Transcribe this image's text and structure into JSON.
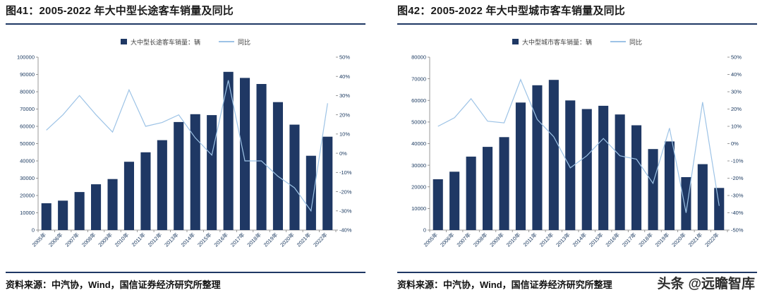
{
  "page_background": "#ffffff",
  "watermark": {
    "logo": "头条",
    "handle": "@远瞻智库"
  },
  "panels": [
    {
      "title": "图41：2005-2022 年大中型长途客车销量及同比",
      "source": "资料来源：中汽协，Wind，国信证券经济研究所整理"
    },
    {
      "title": "图42：2005-2022 年大中型城市客车销量及同比",
      "source": "资料来源：中汽协，Wind，国信证券经济研究所整理"
    }
  ],
  "chart_data": [
    {
      "type": "bar+line",
      "title": "2005-2022 年大中型长途客车销量及同比",
      "categories": [
        "2005年",
        "2006年",
        "2007年",
        "2008年",
        "2009年",
        "2010年",
        "2011年",
        "2012年",
        "2013年",
        "2014年",
        "2015年",
        "2016年",
        "2017年",
        "2018年",
        "2019年",
        "2020年",
        "2021年",
        "2022年"
      ],
      "series": [
        {
          "name": "大中型长途客车销量：辆",
          "kind": "bar",
          "axis": "left",
          "values": [
            15500,
            17000,
            22000,
            26500,
            29500,
            39500,
            45000,
            52000,
            62500,
            67000,
            66500,
            91500,
            88000,
            84500,
            74000,
            61000,
            43000,
            54000
          ]
        },
        {
          "name": "同比",
          "kind": "line",
          "axis": "right",
          "values": [
            12,
            20,
            30,
            20,
            11,
            33,
            14,
            16,
            20,
            8,
            -1,
            38,
            -4,
            -4,
            -12,
            -18,
            -30,
            26
          ]
        }
      ],
      "left_axis": {
        "min": 0,
        "max": 100000,
        "step": 10000
      },
      "right_axis": {
        "min": -40,
        "max": 50,
        "step": 10,
        "suffix": "%"
      },
      "legend_position": "top",
      "grid": false,
      "colors": {
        "bar": "#1f3864",
        "line": "#9dc3e6",
        "axis_text": "#17365d",
        "axis_line": "#7f7f7f"
      }
    },
    {
      "type": "bar+line",
      "title": "2005-2022 年大中型城市客车销量及同比",
      "categories": [
        "2005年",
        "2006年",
        "2007年",
        "2008年",
        "2009年",
        "2010年",
        "2011年",
        "2012年",
        "2013年",
        "2014年",
        "2015年",
        "2016年",
        "2017年",
        "2018年",
        "2019年",
        "2020年",
        "2021年",
        "2022年"
      ],
      "series": [
        {
          "name": "大中型城市客车销量：辆",
          "kind": "bar",
          "axis": "left",
          "values": [
            23500,
            27000,
            34000,
            38500,
            43000,
            59000,
            67000,
            69500,
            60000,
            56000,
            57500,
            53500,
            48500,
            37500,
            41000,
            24500,
            30500,
            19500
          ]
        },
        {
          "name": "同比",
          "kind": "line",
          "axis": "right",
          "values": [
            10,
            15,
            26,
            13,
            12,
            37,
            14,
            4,
            -14,
            -7,
            3,
            -7,
            -9,
            -23,
            9,
            -40,
            24,
            -36
          ]
        }
      ],
      "left_axis": {
        "min": 0,
        "max": 80000,
        "step": 10000
      },
      "right_axis": {
        "min": -50,
        "max": 50,
        "step": 10,
        "suffix": "%"
      },
      "legend_position": "top",
      "grid": false,
      "colors": {
        "bar": "#1f3864",
        "line": "#9dc3e6",
        "axis_text": "#17365d",
        "axis_line": "#7f7f7f"
      }
    }
  ]
}
